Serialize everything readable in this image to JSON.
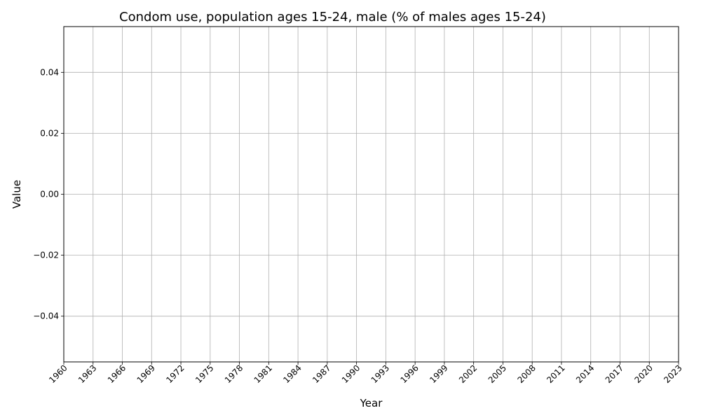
{
  "chart_data": {
    "type": "line",
    "title": "Condom use, population ages 15-24, male (% of males ages 15-24)",
    "xlabel": "Year",
    "ylabel": "Value",
    "xlim": [
      1960,
      2023
    ],
    "ylim": [
      -0.055,
      0.055
    ],
    "x_ticks": [
      1960,
      1963,
      1966,
      1969,
      1972,
      1975,
      1978,
      1981,
      1984,
      1987,
      1990,
      1993,
      1996,
      1999,
      2002,
      2005,
      2008,
      2011,
      2014,
      2017,
      2020,
      2023
    ],
    "x_tick_labels": [
      "1960",
      "1963",
      "1966",
      "1969",
      "1972",
      "1975",
      "1978",
      "1981",
      "1984",
      "1987",
      "1990",
      "1993",
      "1996",
      "1999",
      "2002",
      "2005",
      "2008",
      "2011",
      "2014",
      "2017",
      "2020",
      "2023"
    ],
    "y_ticks": [
      -0.04,
      -0.02,
      0.0,
      0.02,
      0.04
    ],
    "y_tick_labels": [
      "−0.04",
      "−0.02",
      "0.00",
      "0.02",
      "0.04"
    ],
    "grid": true,
    "series": [
      {
        "values": []
      }
    ],
    "colors": {
      "grid": "#b0b0b0",
      "axis": "#000000",
      "background": "#ffffff"
    }
  }
}
